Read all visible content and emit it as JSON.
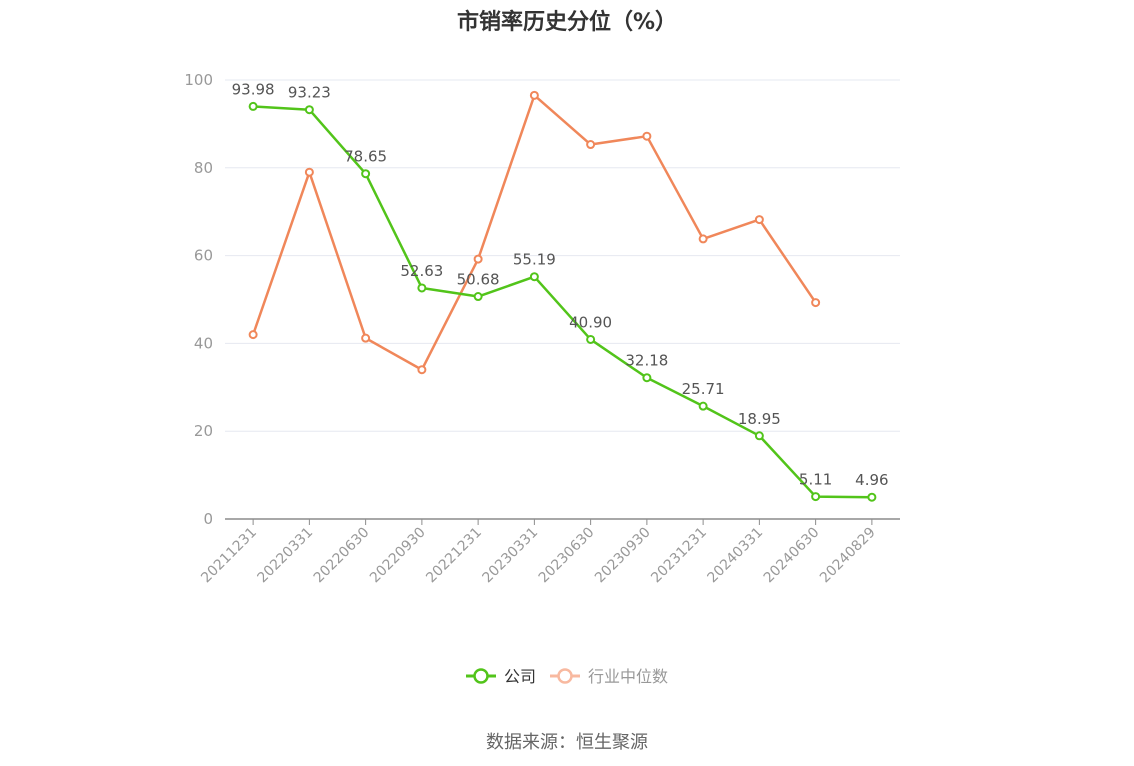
{
  "chart_data": {
    "type": "line",
    "title": "市销率历史分位（%）",
    "x": [
      "20211231",
      "20220331",
      "20220630",
      "20220930",
      "20221231",
      "20230331",
      "20230630",
      "20230930",
      "20231231",
      "20240331",
      "20240630",
      "20240829"
    ],
    "ylim": [
      0,
      100
    ],
    "yticks": [
      0,
      20,
      40,
      60,
      80,
      100
    ],
    "grid": true,
    "legend_position": "bottom-center",
    "series": [
      {
        "name": "公司",
        "color": "#52c41a",
        "values": [
          93.98,
          93.23,
          78.65,
          52.63,
          50.68,
          55.19,
          40.9,
          32.18,
          25.71,
          18.95,
          5.11,
          4.96
        ],
        "labels": [
          "93.98",
          "93.23",
          "78.65",
          "52.63",
          "50.68",
          "55.19",
          "40.90",
          "32.18",
          "25.71",
          "18.95",
          "5.11",
          "4.96"
        ]
      },
      {
        "name": "行业中位数",
        "color": "#f0875a",
        "values": [
          42.0,
          79.0,
          41.2,
          34.0,
          59.2,
          96.5,
          85.3,
          87.2,
          63.8,
          68.2,
          49.3,
          null
        ]
      }
    ]
  },
  "source": "数据来源：恒生聚源"
}
